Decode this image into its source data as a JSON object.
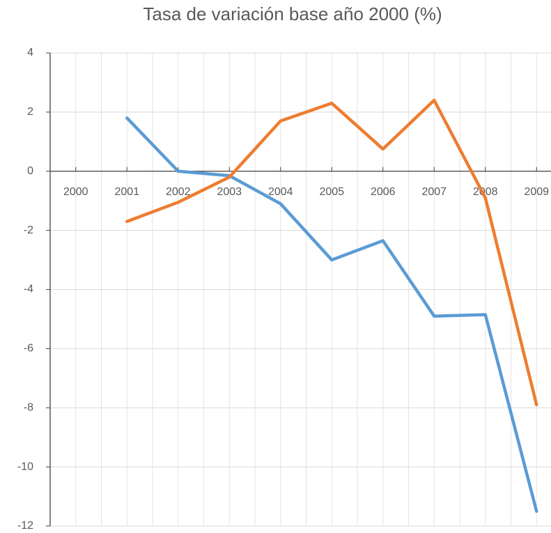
{
  "chart_data": {
    "type": "line",
    "title": "Tasa de variación base año 2000 (%)",
    "categories": [
      "2000",
      "2001",
      "2002",
      "2003",
      "2004",
      "2005",
      "2006",
      "2007",
      "2008",
      "2009"
    ],
    "series": [
      {
        "color": "#5b9bd5",
        "values": [
          null,
          1.8,
          0,
          -0.15,
          -1.1,
          -3.0,
          -2.35,
          -4.9,
          -4.85,
          -11.5
        ]
      },
      {
        "color": "#ed7d31",
        "values": [
          null,
          -1.7,
          -1.05,
          -0.2,
          1.7,
          2.3,
          0.75,
          2.4,
          -0.9,
          -7.9
        ]
      }
    ],
    "ylim": [
      -12,
      4
    ],
    "yticks": [
      -12,
      -10,
      -8,
      -6,
      -4,
      -2,
      0,
      2,
      4
    ],
    "grid": true
  }
}
